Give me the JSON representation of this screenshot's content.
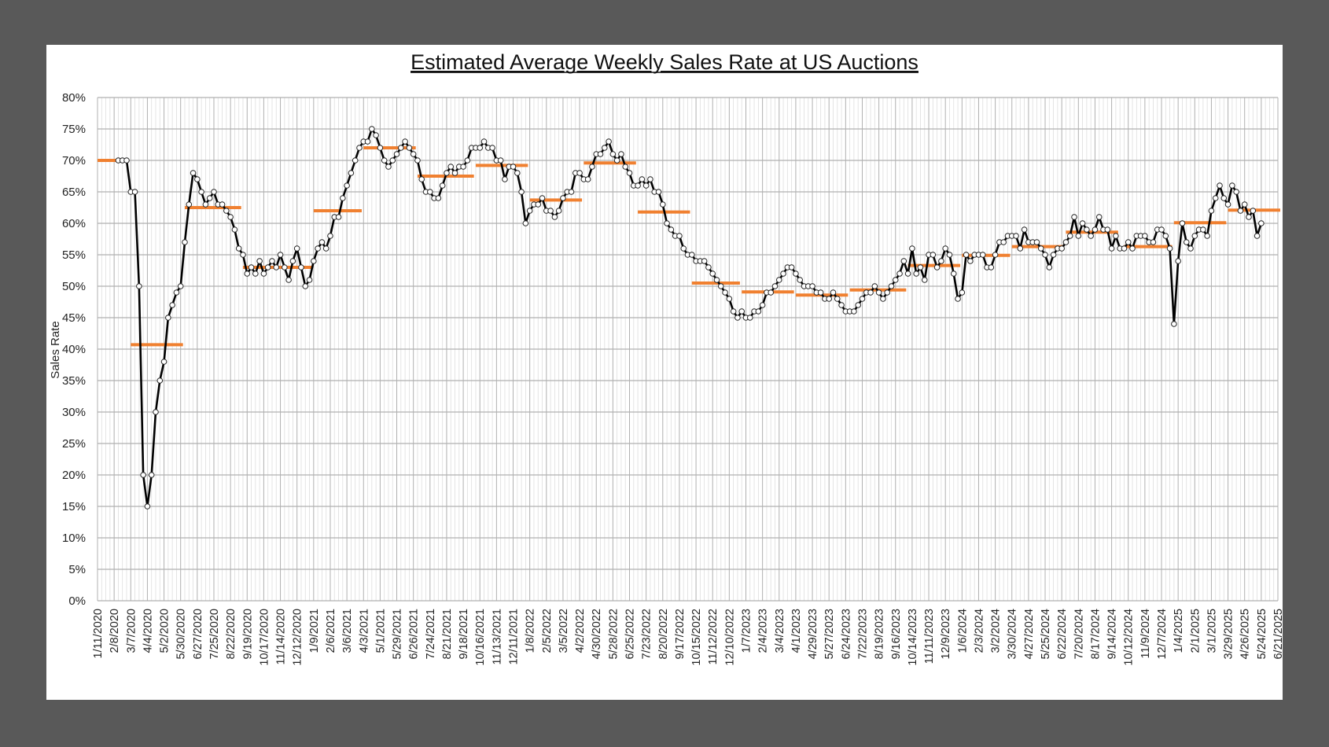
{
  "chart_data": {
    "type": "line",
    "title": "Estimated Average Weekly Sales Rate at US Auctions",
    "xlabel": "",
    "ylabel": "Sales Rate",
    "ylim": [
      0,
      80
    ],
    "y_unit": "%",
    "y_ticks": [
      "0%",
      "5%",
      "10%",
      "15%",
      "20%",
      "25%",
      "30%",
      "35%",
      "40%",
      "45%",
      "50%",
      "55%",
      "60%",
      "65%",
      "70%",
      "75%",
      "80%"
    ],
    "x_ticks": [
      "1/11/2020",
      "2/8/2020",
      "3/7/2020",
      "4/4/2020",
      "5/2/2020",
      "5/30/2020",
      "6/27/2020",
      "7/25/2020",
      "8/22/2020",
      "9/19/2020",
      "10/17/2020",
      "11/14/2020",
      "12/12/2020",
      "1/9/2021",
      "2/6/2021",
      "3/6/2021",
      "4/3/2021",
      "5/1/2021",
      "5/29/2021",
      "6/26/2021",
      "7/24/2021",
      "8/21/2021",
      "9/18/2021",
      "10/16/2021",
      "11/13/2021",
      "12/11/2021",
      "1/8/2022",
      "2/5/2022",
      "3/5/2022",
      "4/2/2022",
      "4/30/2022",
      "5/28/2022",
      "6/25/2022",
      "7/23/2022",
      "8/20/2022",
      "9/17/2022",
      "10/15/2022",
      "11/12/2022",
      "12/10/2022",
      "1/7/2023",
      "2/4/2023",
      "3/4/2023",
      "4/1/2023",
      "4/29/2023",
      "5/27/2023",
      "6/24/2023",
      "7/22/2023",
      "8/19/2023",
      "9/16/2023",
      "10/14/2023",
      "11/11/2023",
      "12/9/2023",
      "1/6/2024",
      "2/3/2024",
      "3/2/2024",
      "3/30/2024",
      "4/27/2024",
      "5/25/2024",
      "6/22/2024",
      "7/20/2024",
      "8/17/2024",
      "9/14/2024",
      "10/12/2024",
      "11/9/2024",
      "12/7/2024",
      "1/4/2025",
      "2/1/2025",
      "3/1/2025",
      "3/29/2025",
      "4/26/2025",
      "5/24/2025",
      "6/21/2025"
    ],
    "xlim": [
      "1/11/2020",
      "6/21/2025"
    ],
    "grid": true,
    "legend": "none",
    "colors": {
      "weekly_line": "#000000",
      "marker_fill": "#ffffff",
      "period_average": "#f08030",
      "grid_major": "#b0b0b0",
      "grid_minor": "#dedede"
    },
    "series": [
      {
        "type": "line-with-markers",
        "first_week": "2/15/2020",
        "frequency": "weekly",
        "values": [
          70,
          70,
          70,
          65,
          65,
          50,
          20,
          15,
          20,
          30,
          35,
          38,
          45,
          47,
          49,
          50,
          57,
          63,
          68,
          67,
          65,
          63,
          64,
          65,
          63,
          63,
          62,
          61,
          59,
          56,
          55,
          52,
          53,
          52,
          54,
          52,
          53,
          54,
          53,
          55,
          53,
          51,
          54,
          56,
          53,
          50,
          51,
          54,
          56,
          57,
          56,
          58,
          61,
          61,
          64,
          66,
          68,
          70,
          72,
          73,
          73,
          75,
          74,
          72,
          70,
          69,
          70,
          71,
          72,
          73,
          72,
          71,
          70,
          67,
          65,
          65,
          64,
          64,
          66,
          68,
          69,
          68,
          69,
          69,
          70,
          72,
          72,
          72,
          73,
          72,
          72,
          70,
          70,
          67,
          69,
          69,
          68,
          65,
          60,
          62,
          63,
          63,
          64,
          62,
          62,
          61,
          62,
          64,
          65,
          65,
          68,
          68,
          67,
          67,
          69,
          71,
          71,
          72,
          73,
          71,
          70,
          71,
          69,
          68,
          66,
          66,
          67,
          66,
          67,
          65,
          65,
          63,
          60,
          59,
          58,
          58,
          56,
          55,
          55,
          54,
          54,
          54,
          53,
          52,
          51,
          50,
          49,
          48,
          46,
          45,
          46,
          45,
          45,
          46,
          46,
          47,
          49,
          49,
          50,
          51,
          52,
          53,
          53,
          52,
          51,
          50,
          50,
          50,
          49,
          49,
          48,
          48,
          49,
          48,
          47,
          46,
          46,
          46,
          47,
          48,
          49,
          49,
          50,
          49,
          48,
          49,
          50,
          51,
          52,
          54,
          52,
          56,
          52,
          53,
          51,
          55,
          55,
          53,
          54,
          56,
          55,
          52,
          48,
          49,
          55,
          54,
          55,
          55,
          55,
          53,
          53,
          55,
          57,
          57,
          58,
          58,
          58,
          56,
          59,
          57,
          57,
          57,
          56,
          55,
          53,
          55,
          56,
          56,
          57,
          58,
          61,
          58,
          60,
          59,
          58,
          59,
          61,
          59,
          59,
          56,
          58,
          56,
          56,
          57,
          56,
          58,
          58,
          58,
          57,
          57,
          59,
          59,
          58,
          56,
          44,
          54,
          60,
          57,
          56,
          58,
          59,
          59,
          58,
          62,
          64,
          66,
          64,
          63,
          66,
          65,
          62,
          63,
          61,
          62,
          58,
          60
        ]
      },
      {
        "type": "period-average-segments",
        "segments": [
          {
            "start": "1/11/2020",
            "end": "2/15/2020",
            "value": 70
          },
          {
            "start": "3/7/2020",
            "end": "5/30/2020",
            "value": 40.7
          },
          {
            "start": "6/6/2020",
            "end": "9/5/2020",
            "value": 62.5
          },
          {
            "start": "9/12/2020",
            "end": "1/2/2021",
            "value": 53
          },
          {
            "start": "1/9/2021",
            "end": "3/27/2021",
            "value": 62
          },
          {
            "start": "4/3/2021",
            "end": "6/26/2021",
            "value": 72
          },
          {
            "start": "7/3/2021",
            "end": "10/2/2021",
            "value": 67.5
          },
          {
            "start": "10/9/2021",
            "end": "1/1/2022",
            "value": 69.2
          },
          {
            "start": "1/8/2022",
            "end": "4/2/2022",
            "value": 63.7
          },
          {
            "start": "4/9/2022",
            "end": "7/2/2022",
            "value": 69.6
          },
          {
            "start": "7/9/2022",
            "end": "10/1/2022",
            "value": 61.8
          },
          {
            "start": "10/8/2022",
            "end": "12/24/2022",
            "value": 50.5
          },
          {
            "start": "12/31/2022",
            "end": "3/25/2023",
            "value": 49.1
          },
          {
            "start": "4/1/2023",
            "end": "6/24/2023",
            "value": 48.6
          },
          {
            "start": "7/1/2023",
            "end": "9/30/2023",
            "value": 49.4
          },
          {
            "start": "10/7/2023",
            "end": "12/30/2023",
            "value": 53.3
          },
          {
            "start": "1/6/2024",
            "end": "3/23/2024",
            "value": 54.9
          },
          {
            "start": "3/30/2024",
            "end": "6/22/2024",
            "value": 56.3
          },
          {
            "start": "6/29/2024",
            "end": "9/21/2024",
            "value": 58.6
          },
          {
            "start": "10/5/2024",
            "end": "12/21/2024",
            "value": 56.3
          },
          {
            "start": "12/28/2024",
            "end": "3/22/2025",
            "value": 60.1
          },
          {
            "start": "3/29/2025",
            "end": "6/21/2025",
            "value": 62.1
          }
        ]
      }
    ]
  }
}
